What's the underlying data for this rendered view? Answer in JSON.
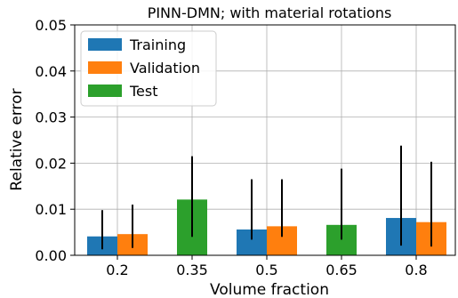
{
  "chart_data": {
    "type": "bar",
    "title": "PINN-DMN; with material rotations",
    "xlabel": "Volume fraction",
    "ylabel": "Relative error",
    "ylim": [
      0,
      0.05
    ],
    "yticks": [
      "0.00",
      "0.01",
      "0.02",
      "0.03",
      "0.04",
      "0.05"
    ],
    "categories": [
      "0.2",
      "0.35",
      "0.5",
      "0.65",
      "0.8"
    ],
    "grid": true,
    "legend_position": "top-left",
    "series": [
      {
        "name": "Training",
        "color": "#1f77b4",
        "values": [
          0.0041,
          null,
          0.0056,
          null,
          0.0081
        ],
        "err_low": [
          0.0013,
          null,
          0.0034,
          null,
          0.0021
        ],
        "err_high": [
          0.0098,
          null,
          0.0165,
          null,
          0.0238
        ]
      },
      {
        "name": "Validation",
        "color": "#ff7f0e",
        "values": [
          0.0046,
          null,
          0.0063,
          null,
          0.0072
        ],
        "err_low": [
          0.0016,
          null,
          0.004,
          null,
          0.0019
        ],
        "err_high": [
          0.011,
          null,
          0.0165,
          null,
          0.0203
        ]
      },
      {
        "name": "Test",
        "color": "#2ca02c",
        "values": [
          null,
          0.0121,
          null,
          0.0066,
          null
        ],
        "err_low": [
          null,
          0.004,
          null,
          0.0034,
          null
        ],
        "err_high": [
          null,
          0.0215,
          null,
          0.0188,
          null
        ]
      }
    ]
  }
}
